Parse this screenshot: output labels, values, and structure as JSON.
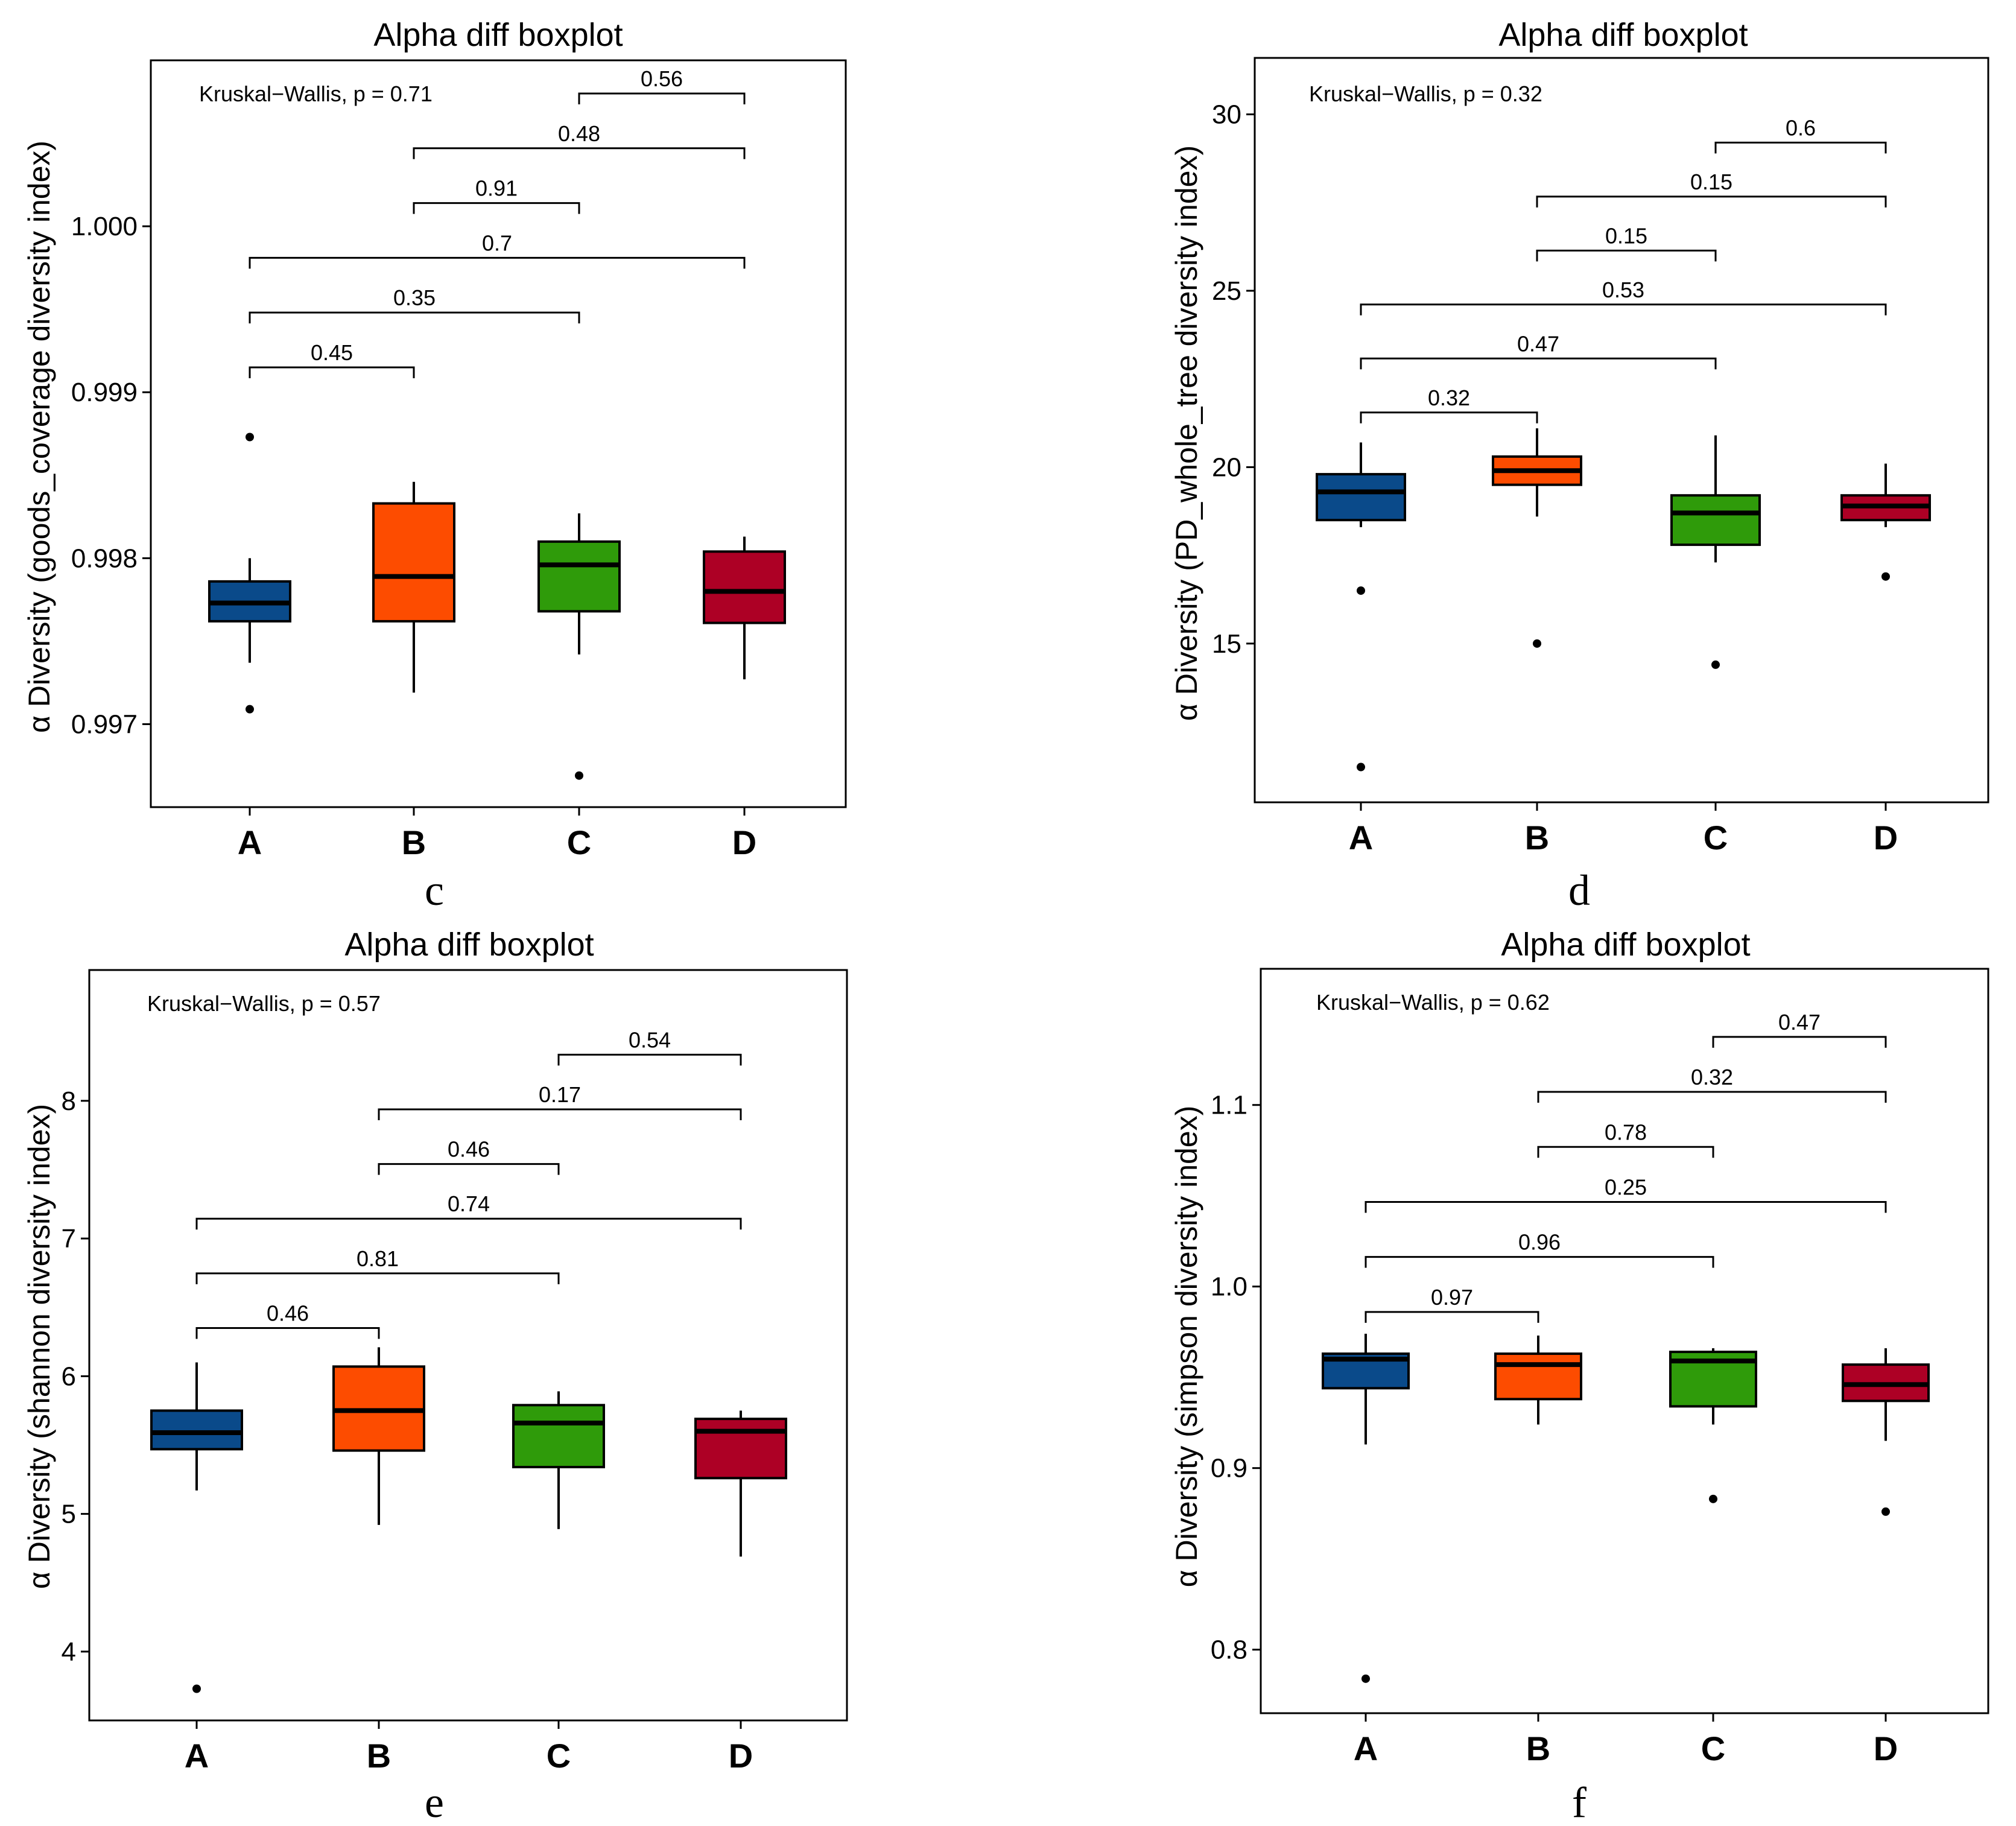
{
  "chart_data": [
    {
      "panel": "c",
      "type": "box",
      "title": "Alpha diff boxplot",
      "ylabel": "α Diversity (goods_coverage diversity index)",
      "categories": [
        "A",
        "B",
        "C",
        "D"
      ],
      "colors": [
        "#0a4a8a",
        "#fd4c00",
        "#2f9b0a",
        "#ad0025"
      ],
      "ylim": [
        0.9965,
        1.001
      ],
      "yticks": [
        0.997,
        0.998,
        0.999,
        1.0
      ],
      "ytick_labels": [
        "0.997",
        "0.998",
        "0.999",
        "1.000"
      ],
      "kruskal_wallis": "Kruskal−Wallis, p = 0.71",
      "boxes": [
        {
          "category": "A",
          "low": 0.99737,
          "q1": 0.99762,
          "median": 0.99773,
          "q3": 0.99786,
          "high": 0.998,
          "outliers": [
            0.99709,
            0.99873
          ]
        },
        {
          "category": "B",
          "low": 0.99719,
          "q1": 0.99762,
          "median": 0.99789,
          "q3": 0.99833,
          "high": 0.99846,
          "outliers": []
        },
        {
          "category": "C",
          "low": 0.99742,
          "q1": 0.99768,
          "median": 0.99796,
          "q3": 0.9981,
          "high": 0.99827,
          "outliers": [
            0.99669
          ]
        },
        {
          "category": "D",
          "low": 0.99727,
          "q1": 0.99761,
          "median": 0.9978,
          "q3": 0.99804,
          "high": 0.99813,
          "outliers": []
        }
      ],
      "comparisons": [
        {
          "from": "A",
          "to": "B",
          "p": "0.45",
          "level": 0
        },
        {
          "from": "A",
          "to": "C",
          "p": "0.35",
          "level": 1
        },
        {
          "from": "A",
          "to": "D",
          "p": "0.7",
          "level": 2
        },
        {
          "from": "B",
          "to": "C",
          "p": "0.91",
          "level": 3
        },
        {
          "from": "B",
          "to": "D",
          "p": "0.48",
          "level": 4
        },
        {
          "from": "C",
          "to": "D",
          "p": "0.56",
          "level": 5
        }
      ],
      "bracket_base": 0.99915,
      "bracket_step": 0.00033
    },
    {
      "panel": "d",
      "type": "box",
      "title": "Alpha diff boxplot",
      "ylabel": "α Diversity (PD_whole_tree diversity index)",
      "categories": [
        "A",
        "B",
        "C",
        "D"
      ],
      "colors": [
        "#0a4a8a",
        "#fd4c00",
        "#2f9b0a",
        "#ad0025"
      ],
      "ylim": [
        10.5,
        31.6
      ],
      "yticks": [
        15,
        20,
        25,
        30
      ],
      "ytick_labels": [
        "15",
        "20",
        "25",
        "30"
      ],
      "kruskal_wallis": "Kruskal−Wallis, p = 0.32",
      "boxes": [
        {
          "category": "A",
          "low": 18.3,
          "q1": 18.5,
          "median": 19.3,
          "q3": 19.8,
          "high": 20.7,
          "outliers": [
            16.5,
            11.5
          ]
        },
        {
          "category": "B",
          "low": 18.6,
          "q1": 19.5,
          "median": 19.9,
          "q3": 20.3,
          "high": 21.1,
          "outliers": [
            15.0
          ]
        },
        {
          "category": "C",
          "low": 17.3,
          "q1": 17.8,
          "median": 18.7,
          "q3": 19.2,
          "high": 20.9,
          "outliers": [
            14.4
          ]
        },
        {
          "category": "D",
          "low": 18.3,
          "q1": 18.5,
          "median": 18.9,
          "q3": 19.2,
          "high": 20.1,
          "outliers": [
            16.9
          ]
        }
      ],
      "comparisons": [
        {
          "from": "A",
          "to": "B",
          "p": "0.32",
          "level": 0
        },
        {
          "from": "A",
          "to": "C",
          "p": "0.47",
          "level": 1
        },
        {
          "from": "A",
          "to": "D",
          "p": "0.53",
          "level": 2
        },
        {
          "from": "B",
          "to": "C",
          "p": "0.15",
          "level": 3
        },
        {
          "from": "B",
          "to": "D",
          "p": "0.15",
          "level": 4
        },
        {
          "from": "C",
          "to": "D",
          "p": "0.6",
          "level": 5
        }
      ],
      "bracket_base": 21.55,
      "bracket_step": 1.53
    },
    {
      "panel": "e",
      "type": "box",
      "title": "Alpha diff boxplot",
      "ylabel": "α Diversity (shannon diversity index)",
      "categories": [
        "A",
        "B",
        "C",
        "D"
      ],
      "colors": [
        "#0a4a8a",
        "#fd4c00",
        "#2f9b0a",
        "#ad0025"
      ],
      "ylim": [
        3.5,
        8.95
      ],
      "yticks": [
        4,
        5,
        6,
        7,
        8
      ],
      "ytick_labels": [
        "4",
        "5",
        "6",
        "7",
        "8"
      ],
      "kruskal_wallis": "Kruskal−Wallis, p = 0.57",
      "boxes": [
        {
          "category": "A",
          "low": 5.17,
          "q1": 5.47,
          "median": 5.59,
          "q3": 5.75,
          "high": 6.1,
          "outliers": [
            3.73
          ]
        },
        {
          "category": "B",
          "low": 4.92,
          "q1": 5.46,
          "median": 5.75,
          "q3": 6.07,
          "high": 6.21,
          "outliers": []
        },
        {
          "category": "C",
          "low": 4.89,
          "q1": 5.34,
          "median": 5.66,
          "q3": 5.79,
          "high": 5.89,
          "outliers": []
        },
        {
          "category": "D",
          "low": 4.69,
          "q1": 5.26,
          "median": 5.6,
          "q3": 5.69,
          "high": 5.75,
          "outliers": []
        }
      ],
      "comparisons": [
        {
          "from": "A",
          "to": "B",
          "p": "0.46",
          "level": 0
        },
        {
          "from": "A",
          "to": "C",
          "p": "0.81",
          "level": 1
        },
        {
          "from": "A",
          "to": "D",
          "p": "0.74",
          "level": 2
        },
        {
          "from": "B",
          "to": "C",
          "p": "0.46",
          "level": 3
        },
        {
          "from": "B",
          "to": "D",
          "p": "0.17",
          "level": 4
        },
        {
          "from": "C",
          "to": "D",
          "p": "0.54",
          "level": 5
        }
      ],
      "bracket_base": 6.35,
      "bracket_step": 0.397
    },
    {
      "panel": "f",
      "type": "box",
      "title": "Alpha diff boxplot",
      "ylabel": "α Diversity (simpson diversity index)",
      "categories": [
        "A",
        "B",
        "C",
        "D"
      ],
      "colors": [
        "#0a4a8a",
        "#fd4c00",
        "#2f9b0a",
        "#ad0025"
      ],
      "ylim": [
        0.765,
        1.175
      ],
      "yticks": [
        0.8,
        0.9,
        1.0,
        1.1
      ],
      "ytick_labels": [
        "0.8",
        "0.9",
        "1.0",
        "1.1"
      ],
      "kruskal_wallis": "Kruskal−Wallis, p = 0.62",
      "boxes": [
        {
          "category": "A",
          "low": 0.913,
          "q1": 0.944,
          "median": 0.96,
          "q3": 0.963,
          "high": 0.974,
          "outliers": [
            0.784
          ]
        },
        {
          "category": "B",
          "low": 0.924,
          "q1": 0.938,
          "median": 0.957,
          "q3": 0.963,
          "high": 0.973,
          "outliers": []
        },
        {
          "category": "C",
          "low": 0.924,
          "q1": 0.934,
          "median": 0.959,
          "q3": 0.964,
          "high": 0.966,
          "outliers": [
            0.883
          ]
        },
        {
          "category": "D",
          "low": 0.915,
          "q1": 0.937,
          "median": 0.946,
          "q3": 0.957,
          "high": 0.966,
          "outliers": [
            0.876
          ]
        }
      ],
      "comparisons": [
        {
          "from": "A",
          "to": "B",
          "p": "0.97",
          "level": 0
        },
        {
          "from": "A",
          "to": "C",
          "p": "0.96",
          "level": 1
        },
        {
          "from": "A",
          "to": "D",
          "p": "0.25",
          "level": 2
        },
        {
          "from": "B",
          "to": "C",
          "p": "0.78",
          "level": 3
        },
        {
          "from": "B",
          "to": "D",
          "p": "0.32",
          "level": 4
        },
        {
          "from": "C",
          "to": "D",
          "p": "0.47",
          "level": 5
        }
      ],
      "bracket_base": 0.986,
      "bracket_step": 0.0303
    }
  ]
}
